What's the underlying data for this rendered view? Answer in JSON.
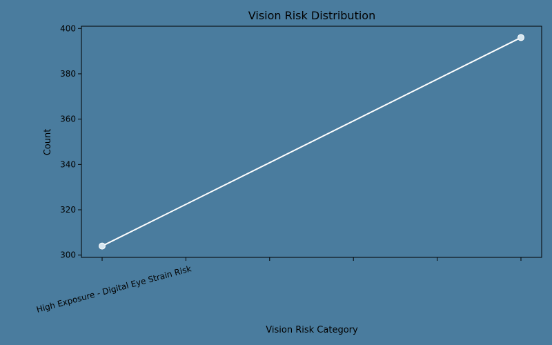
{
  "chart_data": {
    "type": "line",
    "title": "Vision Risk Distribution",
    "xlabel": "Vision Risk Category",
    "ylabel": "Count",
    "categories": [
      "High Exposure - Digital Eye Strain Risk",
      ""
    ],
    "series": [
      {
        "values": [
          304,
          396
        ]
      }
    ],
    "ylim": [
      299,
      401
    ],
    "yticks": [
      300,
      320,
      340,
      360,
      380,
      400
    ],
    "x_tick_positions": [
      0,
      0.2,
      0.4,
      0.6,
      0.8,
      1.0
    ],
    "grid": false,
    "colors": {
      "background": "#4a7c9e",
      "line": "#ffffff",
      "marker": "#d6e6f0"
    }
  }
}
